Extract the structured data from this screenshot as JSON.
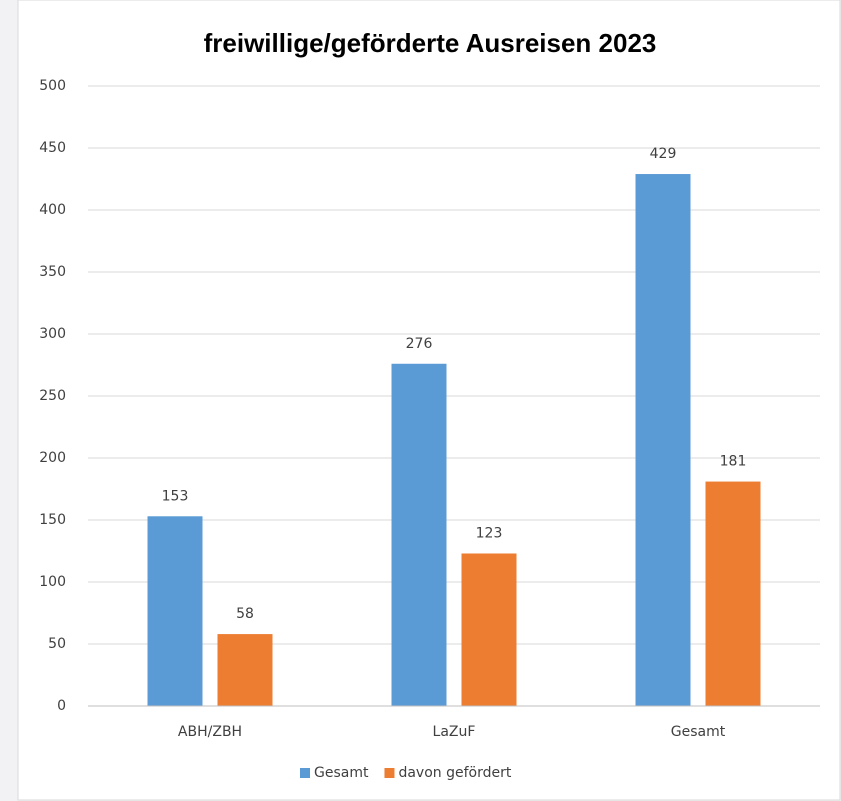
{
  "chart_data": {
    "type": "bar",
    "title": "freiwillige/geförderte Ausreisen 2023",
    "categories": [
      "ABH/ZBH",
      "LaZuF",
      "Gesamt"
    ],
    "series": [
      {
        "name": "Gesamt",
        "color": "#5b9bd5",
        "values": [
          153,
          276,
          429
        ]
      },
      {
        "name": "davon gefördert",
        "color": "#ed7d31",
        "values": [
          58,
          123,
          181
        ]
      }
    ],
    "ylim": [
      0,
      500
    ],
    "yticks": [
      0,
      50,
      100,
      150,
      200,
      250,
      300,
      350,
      400,
      450,
      500
    ],
    "grid": true,
    "legend": "bottom"
  }
}
